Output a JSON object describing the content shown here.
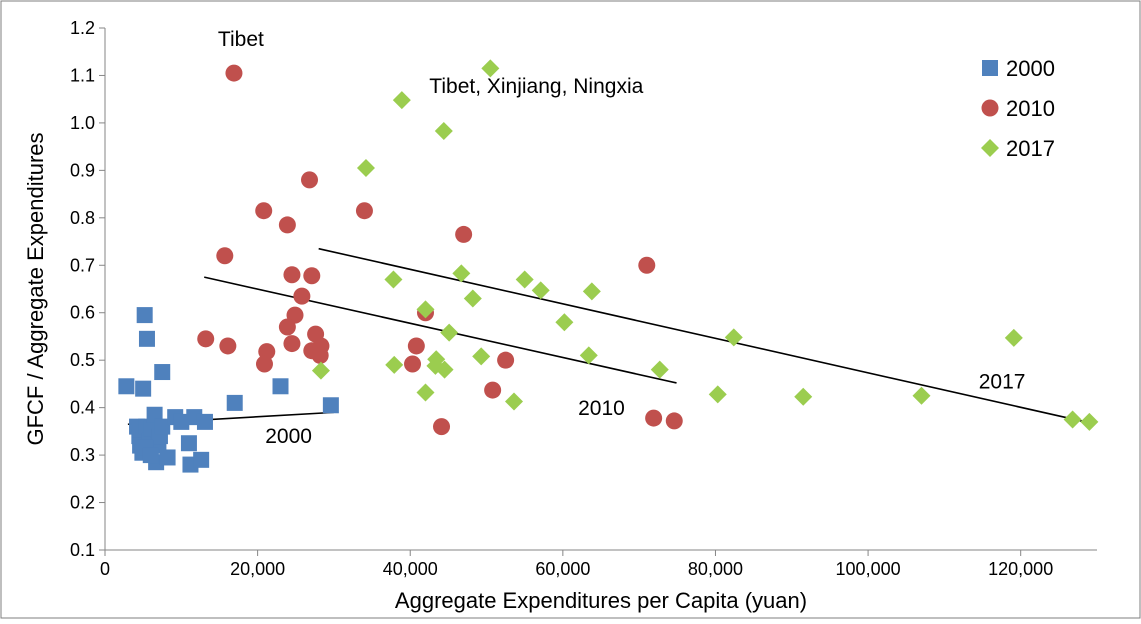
{
  "chart_data": {
    "type": "scatter",
    "title": "",
    "xlabel": "Aggregate Expenditures per Capita (yuan)",
    "ylabel": "GFCF / Aggregate Expenditures",
    "xlim": [
      0,
      130000
    ],
    "ylim": [
      0.1,
      1.2
    ],
    "grid": false,
    "legend_position": "top-right",
    "x_ticks": [
      0,
      20000,
      40000,
      60000,
      80000,
      100000,
      120000
    ],
    "x_tick_labels": [
      "0",
      "20,000",
      "40,000",
      "60,000",
      "80,000",
      "100,000",
      "120,000"
    ],
    "y_ticks": [
      0.1,
      0.2,
      0.3,
      0.4,
      0.5,
      0.6,
      0.7,
      0.8,
      0.9,
      1.0,
      1.1,
      1.2
    ],
    "y_tick_labels": [
      "0.1",
      "0.2",
      "0.3",
      "0.4",
      "0.5",
      "0.6",
      "0.7",
      "0.8",
      "0.9",
      "1.0",
      "1.1",
      "1.2"
    ],
    "series": [
      {
        "name": "2000",
        "marker": "square",
        "color": "#4F81BD",
        "points": [
          [
            2800,
            0.445
          ],
          [
            5000,
            0.44
          ],
          [
            5200,
            0.595
          ],
          [
            5500,
            0.545
          ],
          [
            7500,
            0.475
          ],
          [
            4200,
            0.36
          ],
          [
            4500,
            0.34
          ],
          [
            4600,
            0.32
          ],
          [
            4900,
            0.305
          ],
          [
            5400,
            0.36
          ],
          [
            5800,
            0.33
          ],
          [
            6100,
            0.355
          ],
          [
            6500,
            0.385
          ],
          [
            6700,
            0.285
          ],
          [
            7000,
            0.32
          ],
          [
            7200,
            0.34
          ],
          [
            7500,
            0.36
          ],
          [
            8200,
            0.295
          ],
          [
            9200,
            0.38
          ],
          [
            10000,
            0.37
          ],
          [
            11000,
            0.325
          ],
          [
            11200,
            0.28
          ],
          [
            11700,
            0.38
          ],
          [
            12600,
            0.29
          ],
          [
            13100,
            0.37
          ],
          [
            17000,
            0.41
          ],
          [
            23000,
            0.445
          ],
          [
            29600,
            0.405
          ],
          [
            5300,
            0.315
          ],
          [
            6000,
            0.3
          ]
        ],
        "trendline": [
          [
            3000,
            0.365
          ],
          [
            30000,
            0.39
          ]
        ]
      },
      {
        "name": "2010",
        "marker": "circle",
        "color": "#C0504D",
        "points": [
          [
            16900,
            1.105
          ],
          [
            26800,
            0.88
          ],
          [
            20800,
            0.815
          ],
          [
            34000,
            0.815
          ],
          [
            23900,
            0.785
          ],
          [
            47000,
            0.765
          ],
          [
            15700,
            0.72
          ],
          [
            71000,
            0.7
          ],
          [
            24500,
            0.68
          ],
          [
            27100,
            0.678
          ],
          [
            25800,
            0.635
          ],
          [
            24900,
            0.595
          ],
          [
            42000,
            0.6
          ],
          [
            23900,
            0.57
          ],
          [
            27600,
            0.555
          ],
          [
            13200,
            0.545
          ],
          [
            16100,
            0.53
          ],
          [
            24500,
            0.535
          ],
          [
            27100,
            0.52
          ],
          [
            28300,
            0.53
          ],
          [
            21200,
            0.518
          ],
          [
            40800,
            0.53
          ],
          [
            52500,
            0.5
          ],
          [
            28200,
            0.51
          ],
          [
            20900,
            0.492
          ],
          [
            40300,
            0.492
          ],
          [
            50800,
            0.437
          ],
          [
            71900,
            0.378
          ],
          [
            74600,
            0.372
          ],
          [
            44100,
            0.36
          ]
        ],
        "trendline": [
          [
            13000,
            0.675
          ],
          [
            74900,
            0.452
          ]
        ]
      },
      {
        "name": "2017",
        "marker": "diamond",
        "color": "#9BCD4F",
        "points": [
          [
            50500,
            1.115
          ],
          [
            38900,
            1.048
          ],
          [
            44400,
            0.983
          ],
          [
            34200,
            0.905
          ],
          [
            46700,
            0.683
          ],
          [
            37800,
            0.67
          ],
          [
            55000,
            0.67
          ],
          [
            57100,
            0.647
          ],
          [
            63800,
            0.645
          ],
          [
            48200,
            0.63
          ],
          [
            42000,
            0.607
          ],
          [
            60200,
            0.58
          ],
          [
            45100,
            0.558
          ],
          [
            82400,
            0.548
          ],
          [
            119100,
            0.547
          ],
          [
            63400,
            0.51
          ],
          [
            49300,
            0.508
          ],
          [
            43400,
            0.502
          ],
          [
            37900,
            0.49
          ],
          [
            43300,
            0.488
          ],
          [
            44500,
            0.48
          ],
          [
            72700,
            0.48
          ],
          [
            28300,
            0.478
          ],
          [
            42000,
            0.432
          ],
          [
            80300,
            0.428
          ],
          [
            91500,
            0.423
          ],
          [
            107000,
            0.425
          ],
          [
            53600,
            0.413
          ],
          [
            126800,
            0.375
          ],
          [
            129000,
            0.37
          ]
        ],
        "trendline": [
          [
            28000,
            0.735
          ],
          [
            129000,
            0.368
          ]
        ]
      }
    ],
    "annotations": [
      {
        "text": "Tibet",
        "x": 14800,
        "y": 1.162
      },
      {
        "text": "Tibet, Xinjiang, Ningxia",
        "x": 42500,
        "y": 1.063
      },
      {
        "text": "2000",
        "x": 21000,
        "y": 0.325
      },
      {
        "text": "2010",
        "x": 62000,
        "y": 0.385
      },
      {
        "text": "2017",
        "x": 114500,
        "y": 0.44
      }
    ]
  }
}
